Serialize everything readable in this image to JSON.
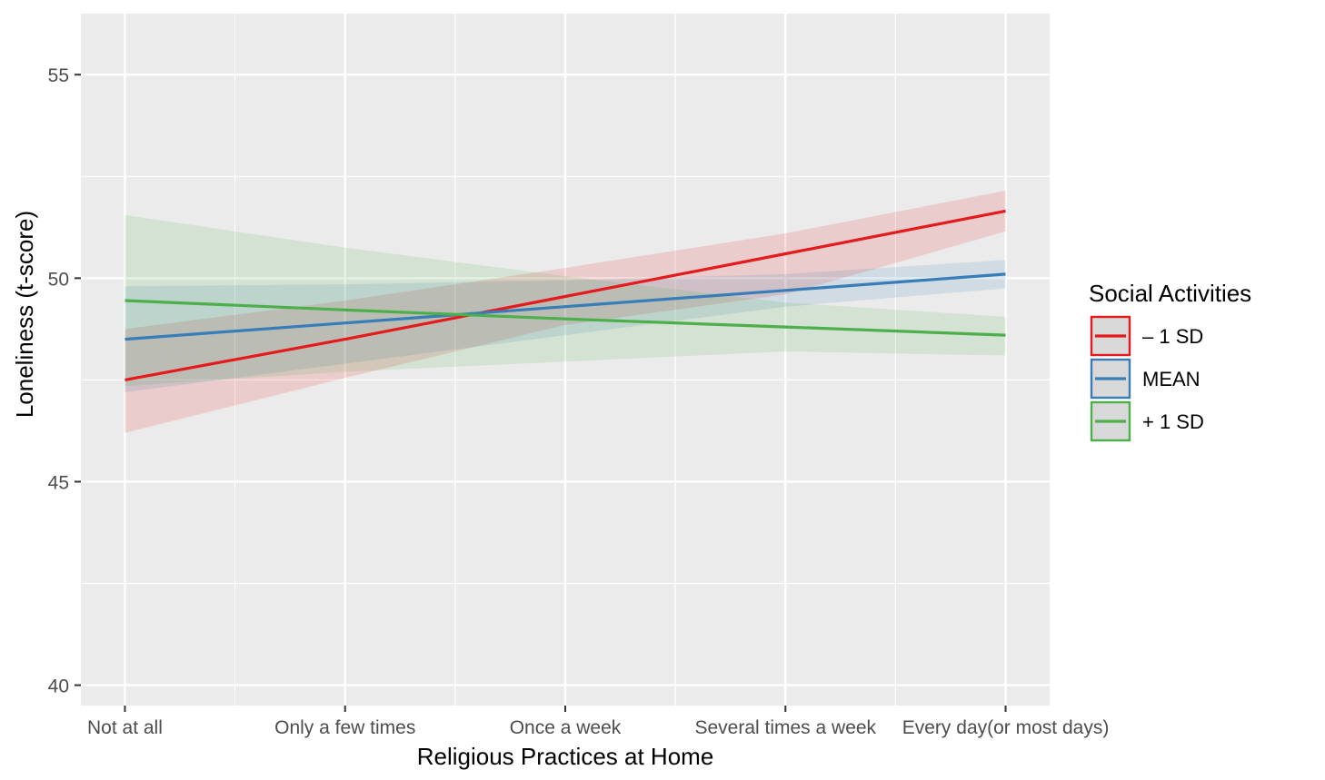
{
  "chart_data": {
    "type": "line",
    "title": "",
    "xlabel": "Religious Practices at Home",
    "ylabel": "Loneliness (t-score)",
    "categories": [
      "Not at all",
      "Only a few times",
      "Once a week",
      "Several times a week",
      "Every day(or most days)"
    ],
    "x": [
      1,
      2,
      3,
      4,
      5
    ],
    "ylim": [
      39.5,
      56.5
    ],
    "yticks": [
      40,
      45,
      50,
      55
    ],
    "grid": true,
    "legend": {
      "title": "Social Activities",
      "position": "right"
    },
    "series": [
      {
        "name": "– 1 SD",
        "color": "#E41A1C",
        "values": [
          47.5,
          48.5,
          49.55,
          50.6,
          51.65
        ],
        "lower": [
          46.2,
          47.55,
          48.85,
          49.6,
          51.15
        ],
        "upper": [
          48.75,
          49.45,
          50.25,
          51.1,
          52.15
        ]
      },
      {
        "name": "MEAN",
        "color": "#377EB8",
        "values": [
          48.5,
          48.9,
          49.3,
          49.7,
          50.1
        ],
        "lower": [
          47.2,
          47.9,
          48.6,
          49.3,
          49.75
        ],
        "upper": [
          49.8,
          49.85,
          49.95,
          50.1,
          50.45
        ]
      },
      {
        "name": "+ 1 SD",
        "color": "#4DAF4A",
        "values": [
          49.45,
          49.22,
          49.0,
          48.8,
          48.6
        ],
        "lower": [
          47.35,
          47.7,
          47.95,
          48.2,
          48.1
        ],
        "upper": [
          51.55,
          50.75,
          50.05,
          49.4,
          49.05
        ]
      }
    ]
  }
}
